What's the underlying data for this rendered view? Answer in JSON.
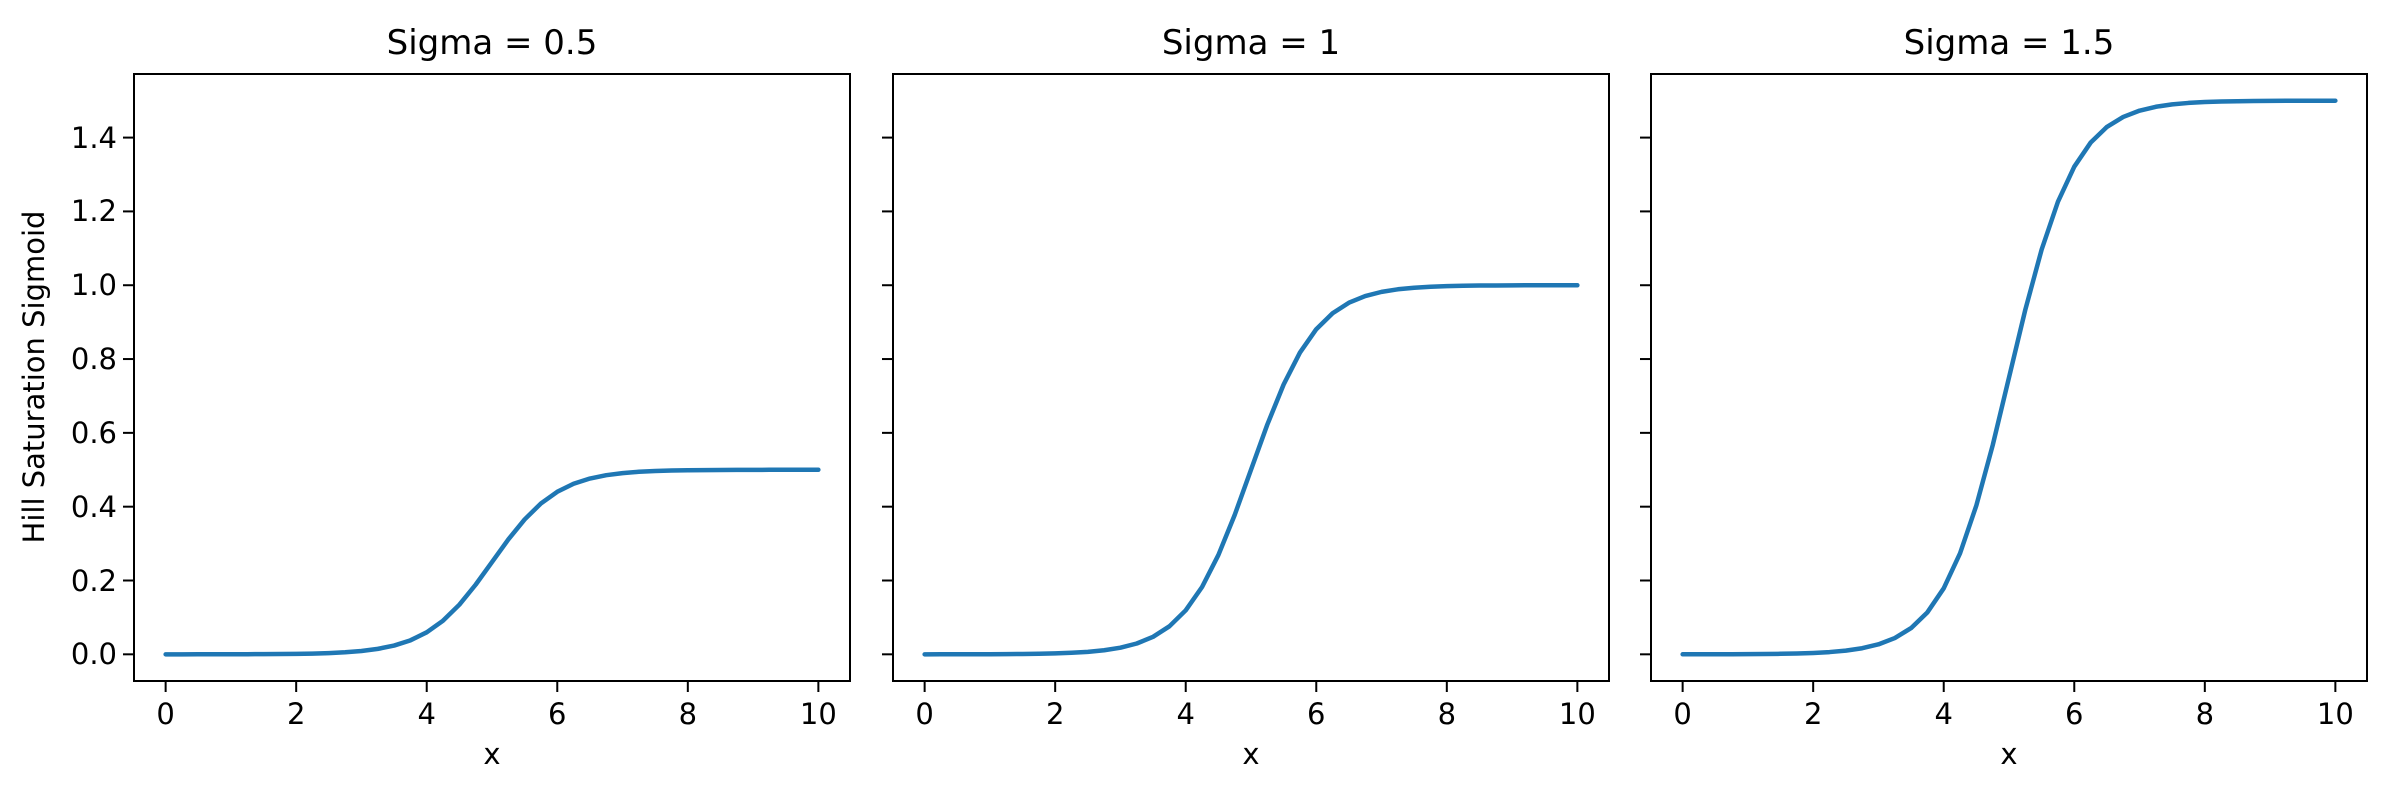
{
  "figure": {
    "background": "#ffffff",
    "text_color": "#000000",
    "ylabel": "Hill Saturation Sigmoid",
    "xlabel": "x"
  },
  "chart_data": {
    "type": "line",
    "line_color": "#1f77b4",
    "spine_color": "#000000",
    "grid": false,
    "legend": false,
    "xlim": [
      -0.5,
      10.5
    ],
    "ylim": [
      -0.075,
      1.575
    ],
    "x_ticks": [
      0,
      2,
      4,
      6,
      8,
      10
    ],
    "x_tick_labels": [
      "0",
      "2",
      "4",
      "6",
      "8",
      "10"
    ],
    "y_ticks": [
      0.0,
      0.2,
      0.4,
      0.6,
      0.8,
      1.0,
      1.2,
      1.4
    ],
    "y_tick_labels": [
      "0.0",
      "0.2",
      "0.4",
      "0.6",
      "0.8",
      "1.0",
      "1.2",
      "1.4"
    ],
    "shared_y_axis": true,
    "x": [
      0,
      0.25,
      0.5,
      0.75,
      1,
      1.25,
      1.5,
      1.75,
      2,
      2.25,
      2.5,
      2.75,
      3,
      3.25,
      3.5,
      3.75,
      4,
      4.25,
      4.5,
      4.75,
      5,
      5.25,
      5.5,
      5.75,
      6,
      6.25,
      6.5,
      6.75,
      7,
      7.25,
      7.5,
      7.75,
      8,
      8.25,
      8.5,
      8.75,
      9,
      9.25,
      9.5,
      9.75,
      10
    ],
    "subplots": [
      {
        "title": "Sigma = 0.5",
        "sigma": 0.5,
        "saturation": 0.5,
        "midpoint": 5,
        "y": [
          0.0,
          0.0,
          0.0001,
          0.0001,
          0.0002,
          0.0003,
          0.0005,
          0.0008,
          0.0012,
          0.002,
          0.0033,
          0.0055,
          0.009,
          0.0147,
          0.0237,
          0.0379,
          0.0596,
          0.0912,
          0.1345,
          0.1888,
          0.25,
          0.3112,
          0.3655,
          0.4088,
          0.4404,
          0.4621,
          0.4763,
          0.4853,
          0.491,
          0.4945,
          0.4967,
          0.498,
          0.4988,
          0.4992,
          0.4995,
          0.4997,
          0.4998,
          0.4999,
          0.4999,
          0.5,
          0.5
        ]
      },
      {
        "title": "Sigma = 1",
        "sigma": 1,
        "saturation": 1.0,
        "midpoint": 5,
        "y": [
          0.0,
          0.0001,
          0.0001,
          0.0002,
          0.0003,
          0.0006,
          0.0009,
          0.0015,
          0.0025,
          0.0041,
          0.0067,
          0.011,
          0.018,
          0.0293,
          0.0474,
          0.0759,
          0.1192,
          0.1824,
          0.2689,
          0.3775,
          0.5,
          0.6225,
          0.7311,
          0.8176,
          0.8808,
          0.9241,
          0.9526,
          0.9707,
          0.982,
          0.989,
          0.9933,
          0.9959,
          0.9975,
          0.9985,
          0.9991,
          0.9994,
          0.9997,
          0.9998,
          0.9999,
          0.9999,
          1.0
        ]
      },
      {
        "title": "Sigma = 1.5",
        "sigma": 1.5,
        "saturation": 1.5,
        "midpoint": 5,
        "y": [
          0.0001,
          0.0001,
          0.0002,
          0.0003,
          0.0005,
          0.0008,
          0.0014,
          0.0023,
          0.0037,
          0.0061,
          0.01,
          0.0165,
          0.027,
          0.044,
          0.0711,
          0.1138,
          0.1788,
          0.2736,
          0.4034,
          0.5663,
          0.75,
          0.9337,
          1.0966,
          1.2264,
          1.3212,
          1.3862,
          1.4289,
          1.456,
          1.473,
          1.4835,
          1.49,
          1.4939,
          1.4963,
          1.4977,
          1.4986,
          1.4992,
          1.4995,
          1.4997,
          1.4998,
          1.4999,
          1.4999
        ]
      }
    ]
  }
}
